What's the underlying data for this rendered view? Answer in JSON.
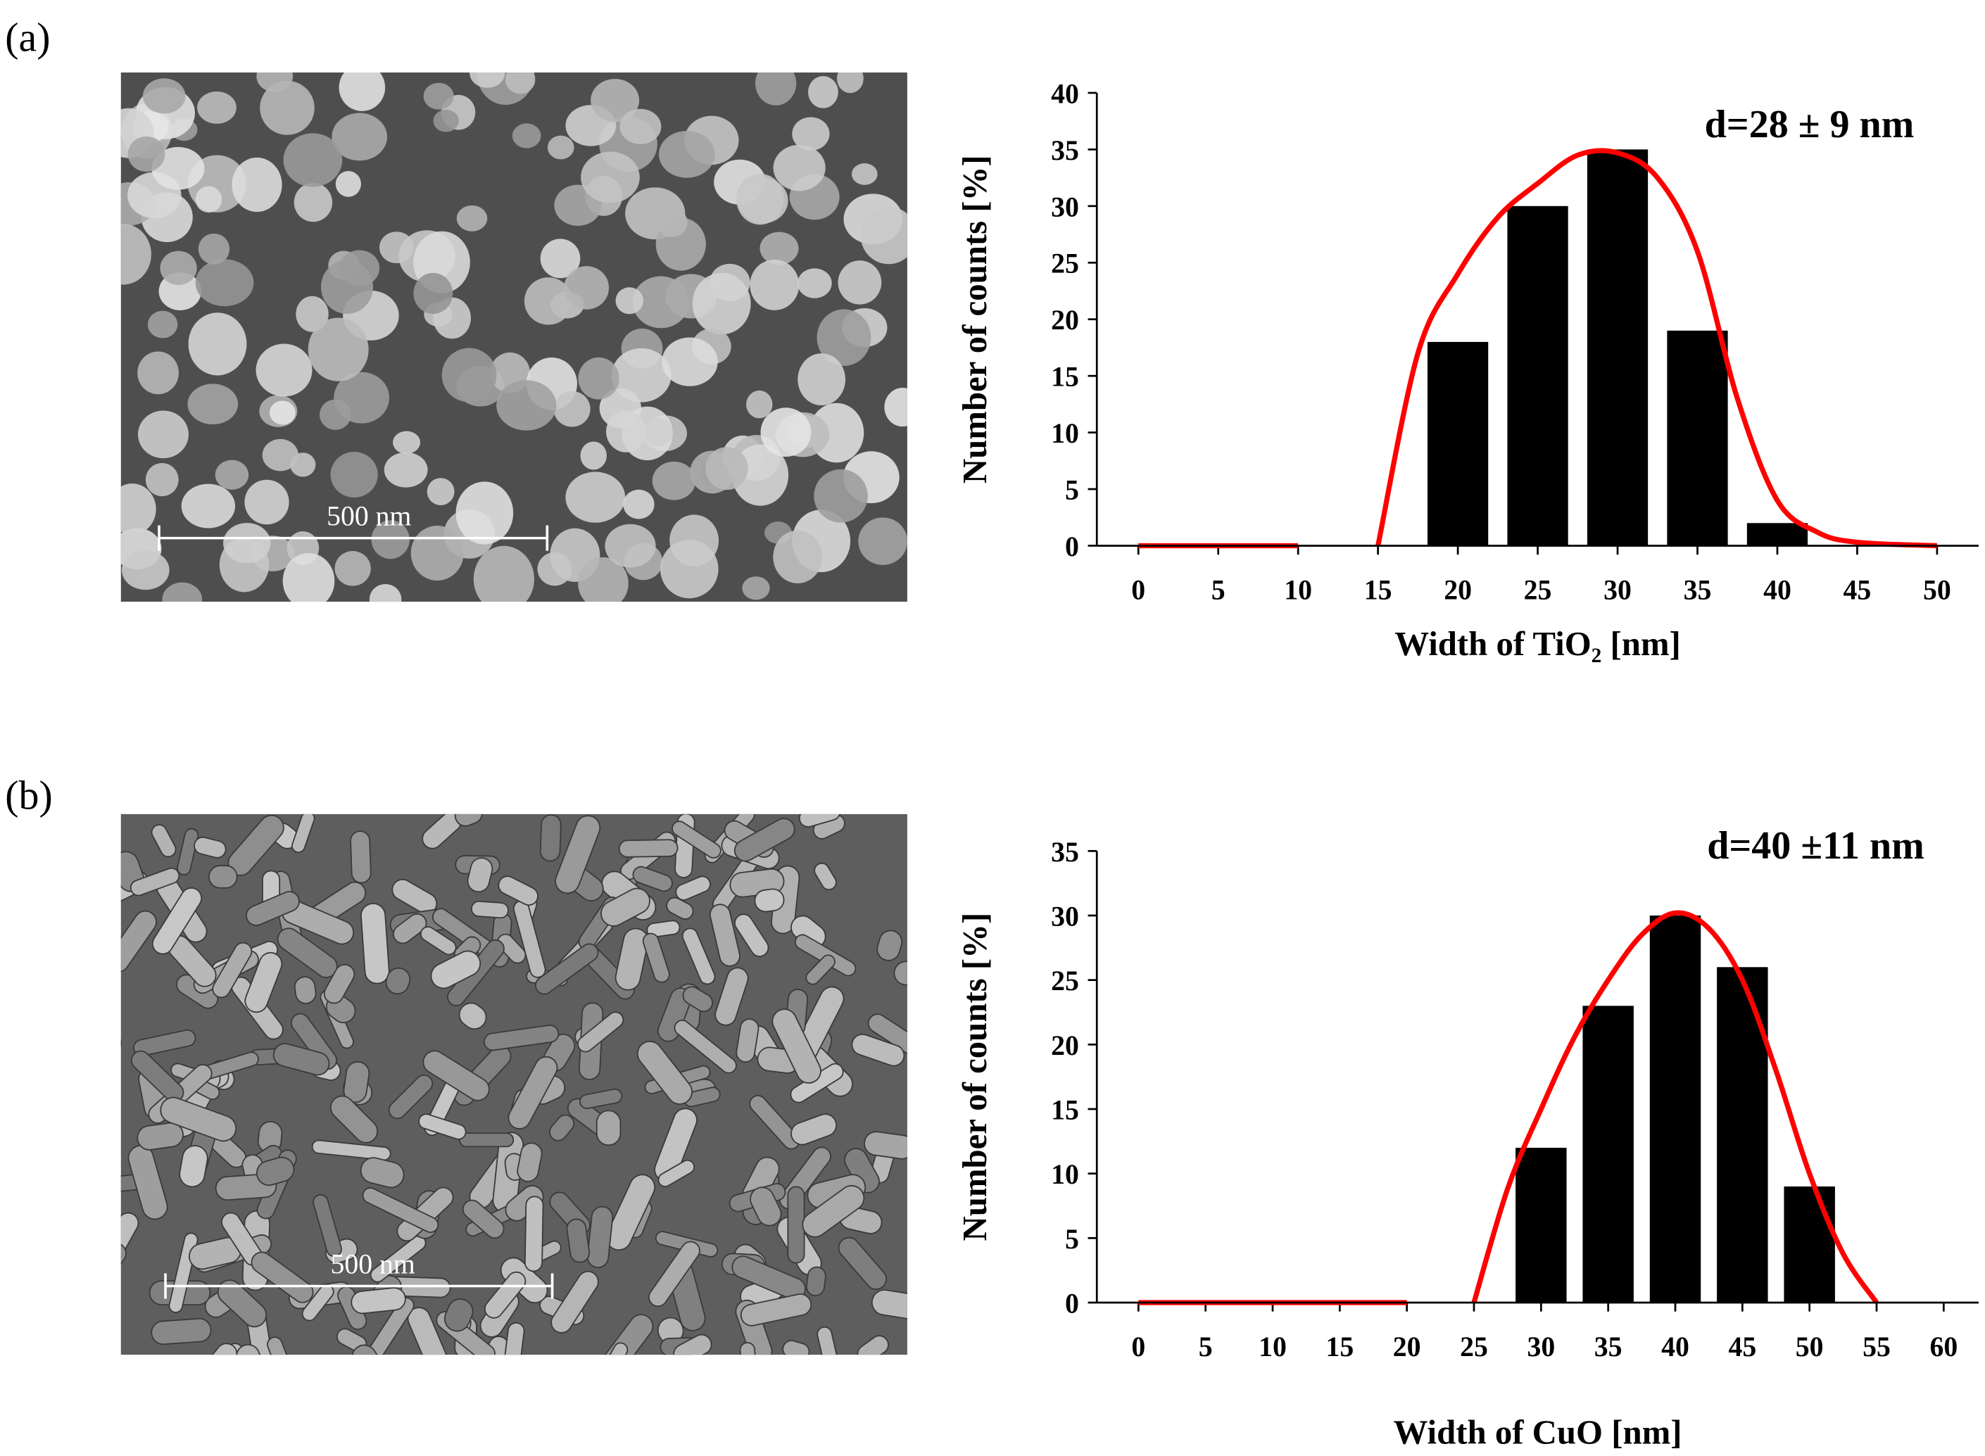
{
  "panels": [
    {
      "label": "(a)",
      "scale_bar": "500 nm"
    },
    {
      "label": "(b)",
      "scale_bar": "500 nm"
    }
  ],
  "chart_data": [
    {
      "type": "bar",
      "annotation": "d=28 ± 9 nm",
      "ylabel": "Number of counts [%]",
      "xlabel": "Width of TiO₂ [nm]",
      "x": [
        0,
        5,
        10,
        15,
        20,
        25,
        30,
        35,
        40,
        45,
        50
      ],
      "values": [
        0,
        0,
        0,
        0,
        18,
        30,
        35,
        19,
        2,
        0,
        0
      ],
      "color": "#000000",
      "fit": {
        "x": [
          0,
          5,
          10,
          12.5,
          15,
          17.5,
          20,
          22.5,
          25,
          27.5,
          30,
          32.5,
          35,
          37.5,
          40,
          42.5,
          45,
          50
        ],
        "values": [
          0,
          0,
          0,
          null,
          0,
          17,
          24,
          29,
          32,
          34.5,
          34.7,
          32.5,
          26,
          13,
          4,
          1.2,
          0.3,
          0
        ],
        "color": "#ff0000"
      },
      "xlim": [
        -2.6,
        52.6
      ],
      "xticks": [
        0,
        5,
        10,
        15,
        20,
        25,
        30,
        35,
        40,
        45,
        50
      ],
      "ylim": [
        0,
        40
      ],
      "yticks": [
        0,
        5,
        10,
        15,
        20,
        25,
        30,
        35,
        40
      ]
    },
    {
      "type": "bar",
      "annotation": "d=40 ±11 nm",
      "ylabel": "Number of counts [%]",
      "xlabel": "Width of CuO [nm]",
      "x": [
        0,
        5,
        10,
        15,
        20,
        25,
        30,
        35,
        40,
        45,
        50,
        55,
        60
      ],
      "values": [
        0,
        0,
        0,
        0,
        0,
        0,
        12,
        23,
        30,
        26,
        9,
        0,
        0
      ],
      "color": "#000000",
      "fit": {
        "x": [
          0,
          5,
          10,
          15,
          20,
          22.5,
          25,
          27.5,
          30,
          32.5,
          35,
          37.5,
          40,
          42.5,
          45,
          47.5,
          50,
          52.5,
          55
        ],
        "values": [
          0,
          0,
          0,
          0,
          0,
          null,
          0,
          8.8,
          15,
          20.6,
          25,
          28.5,
          30.2,
          29,
          25,
          18,
          10,
          3.8,
          0
        ],
        "color": "#ff0000"
      },
      "xlim": [
        -3.1,
        62.6
      ],
      "xticks": [
        0,
        5,
        10,
        15,
        20,
        25,
        30,
        35,
        40,
        45,
        50,
        55,
        60
      ],
      "ylim": [
        0,
        35
      ],
      "yticks": [
        0,
        5,
        10,
        15,
        20,
        25,
        30,
        35
      ]
    }
  ]
}
